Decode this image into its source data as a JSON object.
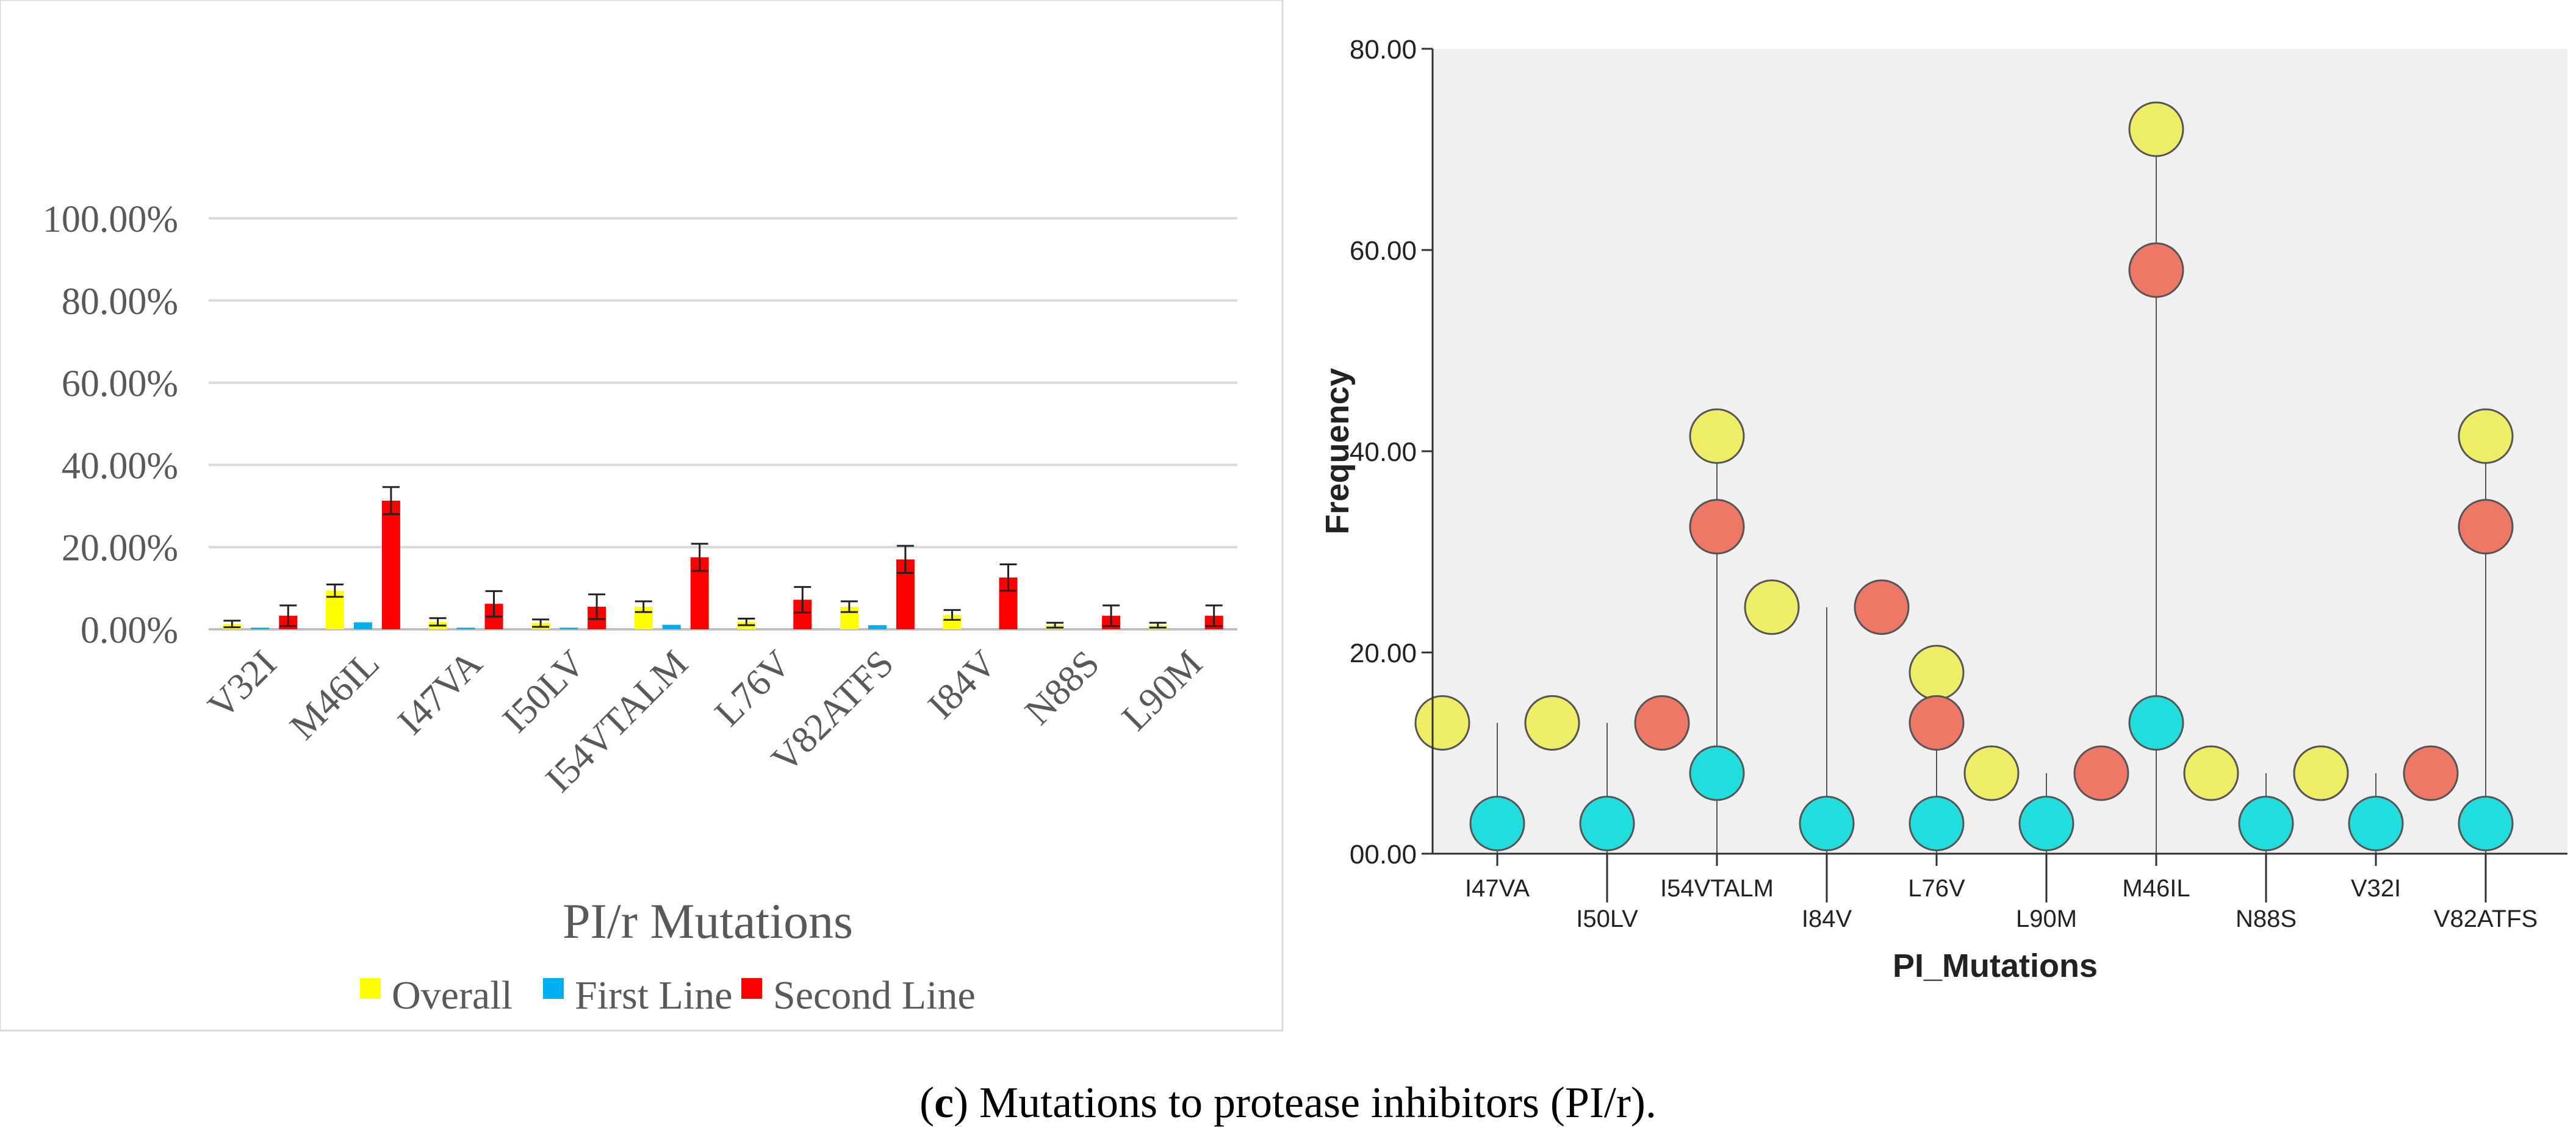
{
  "figure_caption": {
    "prefix": "(",
    "letter": "c",
    "text": ") Mutations to protease inhibitors (PI/r)."
  },
  "chart_data": [
    {
      "type": "bar",
      "title": "",
      "xlabel": "PI/r Mutations",
      "ylabel": "",
      "ylim": [
        0,
        100
      ],
      "yticks": [
        "0.00%",
        "20.00%",
        "40.00%",
        "60.00%",
        "80.00%",
        "100.00%"
      ],
      "ytick_values": [
        0,
        20,
        40,
        60,
        80,
        100
      ],
      "grid": true,
      "legend_position": "bottom",
      "categories": [
        "V32I",
        "M46IL",
        "I47VA",
        "I50LV",
        "I54VTALM",
        "L76V",
        "V82ATFS",
        "I84V",
        "N88S",
        "L90M"
      ],
      "series": [
        {
          "name": "Overall",
          "color": "#ffff00",
          "values": [
            1.3,
            9.4,
            1.8,
            1.5,
            5.5,
            1.8,
            5.5,
            3.5,
            1.0,
            1.0
          ],
          "errors": [
            0.8,
            1.5,
            0.9,
            0.9,
            1.3,
            0.8,
            1.3,
            1.2,
            0.6,
            0.6
          ]
        },
        {
          "name": "First Line",
          "color": "#00b0f0",
          "values": [
            0.4,
            1.7,
            0.4,
            0.4,
            1.1,
            0.0,
            1.0,
            0.0,
            0.0,
            0.0
          ],
          "errors": [
            0,
            0,
            0,
            0,
            0,
            0,
            0,
            0,
            0,
            0
          ]
        },
        {
          "name": "Second Line",
          "color": "#ff0000",
          "values": [
            3.3,
            31.3,
            6.2,
            5.5,
            17.5,
            7.2,
            17.0,
            12.6,
            3.3,
            3.3
          ],
          "errors": [
            2.5,
            3.3,
            3.1,
            3.0,
            3.3,
            3.1,
            3.3,
            3.2,
            2.5,
            2.5
          ]
        }
      ]
    },
    {
      "type": "scatter",
      "title": "",
      "xlabel": "PI_Mutations",
      "ylabel": "Frequency",
      "ylim": [
        0,
        80
      ],
      "yticks": [
        "00.00",
        "20.00",
        "40.00",
        "60.00",
        "80.00"
      ],
      "ytick_values": [
        0,
        20,
        40,
        60,
        80
      ],
      "grid": false,
      "categories": [
        "I47VA",
        "I50LV",
        "I54VTALM",
        "I84V",
        "L76V",
        "L90M",
        "M46IL",
        "N88S",
        "V32I",
        "V82ATFS"
      ],
      "series": [
        {
          "name": "Overall",
          "color": "#eeee66",
          "values": [
            13,
            13,
            41.5,
            24.5,
            18,
            8,
            72,
            8,
            8,
            41.5
          ]
        },
        {
          "name": "First Line",
          "color": "#22dddd",
          "values": [
            3,
            3,
            8,
            3,
            3,
            3,
            13,
            3,
            3,
            3
          ]
        },
        {
          "name": "Second Line",
          "color": "#ee7765",
          "values": [
            13,
            13,
            32.5,
            24.5,
            13,
            8,
            58,
            8,
            8,
            32.5
          ]
        }
      ]
    }
  ]
}
